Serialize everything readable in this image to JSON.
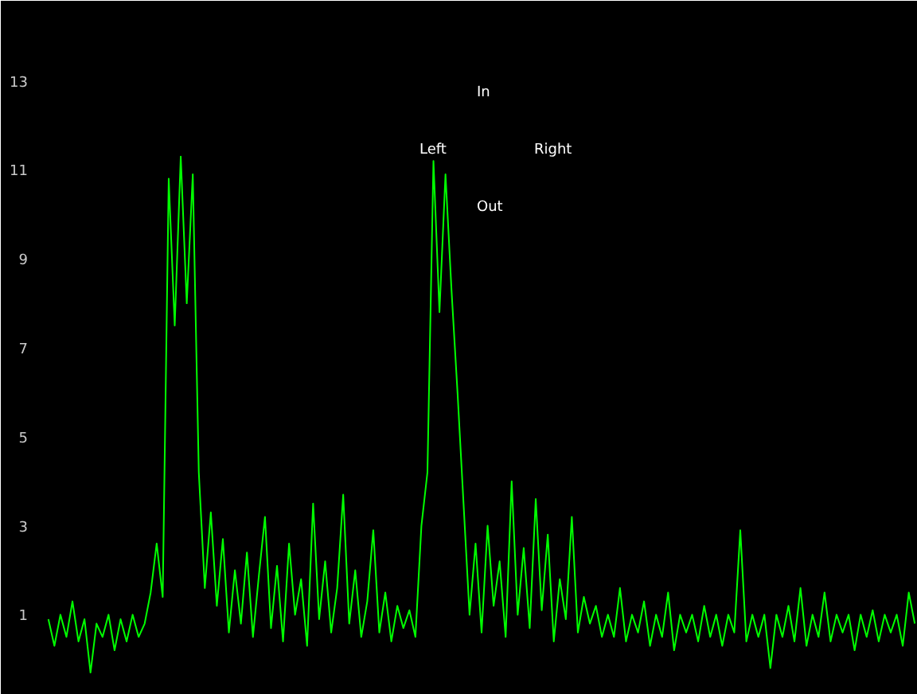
{
  "chart_data": {
    "type": "line",
    "categories": [
      null,
      null,
      null,
      null,
      null,
      null,
      null,
      null,
      null,
      null,
      null,
      null,
      null,
      null,
      null,
      null,
      null,
      null,
      null,
      null,
      null,
      null,
      null,
      null,
      null,
      null,
      null,
      null,
      null,
      null,
      null,
      null,
      null,
      null,
      null,
      null,
      null,
      null,
      null,
      null,
      null,
      null,
      null,
      null,
      null,
      null,
      null,
      null,
      null,
      null,
      null,
      null,
      null,
      null,
      null,
      null,
      null,
      null,
      null,
      null,
      null,
      null,
      null,
      null,
      null,
      null,
      null,
      null,
      null,
      null,
      null,
      null,
      null,
      null,
      null,
      null,
      null,
      null,
      null,
      null,
      null,
      null,
      null,
      null,
      null,
      null,
      null,
      null,
      null,
      null,
      null,
      null,
      null,
      null,
      null,
      null,
      null,
      null,
      null,
      null,
      null,
      null,
      null,
      null,
      null,
      null,
      null,
      null,
      null,
      null,
      null,
      null,
      null,
      null,
      null,
      null,
      null,
      null,
      null,
      null,
      null,
      null,
      null,
      null,
      null,
      null,
      null,
      null,
      null,
      null,
      null,
      null,
      null,
      null,
      null,
      null,
      null,
      null,
      null,
      null,
      null,
      null,
      null,
      null,
      null
    ],
    "series": [
      {
        "color": "#00ff00",
        "values": [
          0.9,
          0.3,
          1.0,
          0.5,
          1.3,
          0.4,
          0.9,
          -0.3,
          0.8,
          0.5,
          1.0,
          0.2,
          0.9,
          0.4,
          1.0,
          0.5,
          0.8,
          1.5,
          2.6,
          1.4,
          10.8,
          7.5,
          11.3,
          8.0,
          10.9,
          4.2,
          1.6,
          3.3,
          1.2,
          2.7,
          0.6,
          2.0,
          0.8,
          2.4,
          0.5,
          1.9,
          3.2,
          0.7,
          2.1,
          0.4,
          2.6,
          1.0,
          1.8,
          0.3,
          3.5,
          0.9,
          2.2,
          0.6,
          1.6,
          3.7,
          0.8,
          2.0,
          0.5,
          1.3,
          2.9,
          0.6,
          1.5,
          0.4,
          1.2,
          0.7,
          1.1,
          0.5,
          3.0,
          4.2,
          11.2,
          7.8,
          10.9,
          8.3,
          6.0,
          3.5,
          1.0,
          2.6,
          0.6,
          3.0,
          1.2,
          2.2,
          0.5,
          4.0,
          1.0,
          2.5,
          0.7,
          3.6,
          1.1,
          2.8,
          0.4,
          1.8,
          0.9,
          3.2,
          0.6,
          1.4,
          0.8,
          1.2,
          0.5,
          1.0,
          0.5,
          1.6,
          0.4,
          1.0,
          0.6,
          1.3,
          0.3,
          1.0,
          0.5,
          1.5,
          0.2,
          1.0,
          0.6,
          1.0,
          0.4,
          1.2,
          0.5,
          1.0,
          0.3,
          1.0,
          0.6,
          2.9,
          0.4,
          1.0,
          0.5,
          1.0,
          -0.2,
          1.0,
          0.5,
          1.2,
          0.4,
          1.6,
          0.3,
          1.0,
          0.5,
          1.5,
          0.4,
          1.0,
          0.6,
          1.0,
          0.2,
          1.0,
          0.5,
          1.1,
          0.4,
          1.0,
          0.6,
          1.0,
          0.3,
          1.5,
          0.8
        ]
      }
    ],
    "ylim": [
      -0.8,
      14.8
    ],
    "yticks": [
      1,
      3,
      5,
      7,
      9,
      11,
      13
    ],
    "grid": false,
    "tick_labels": "y",
    "annotations": [
      "In",
      "Left",
      "Right",
      "Out"
    ]
  }
}
